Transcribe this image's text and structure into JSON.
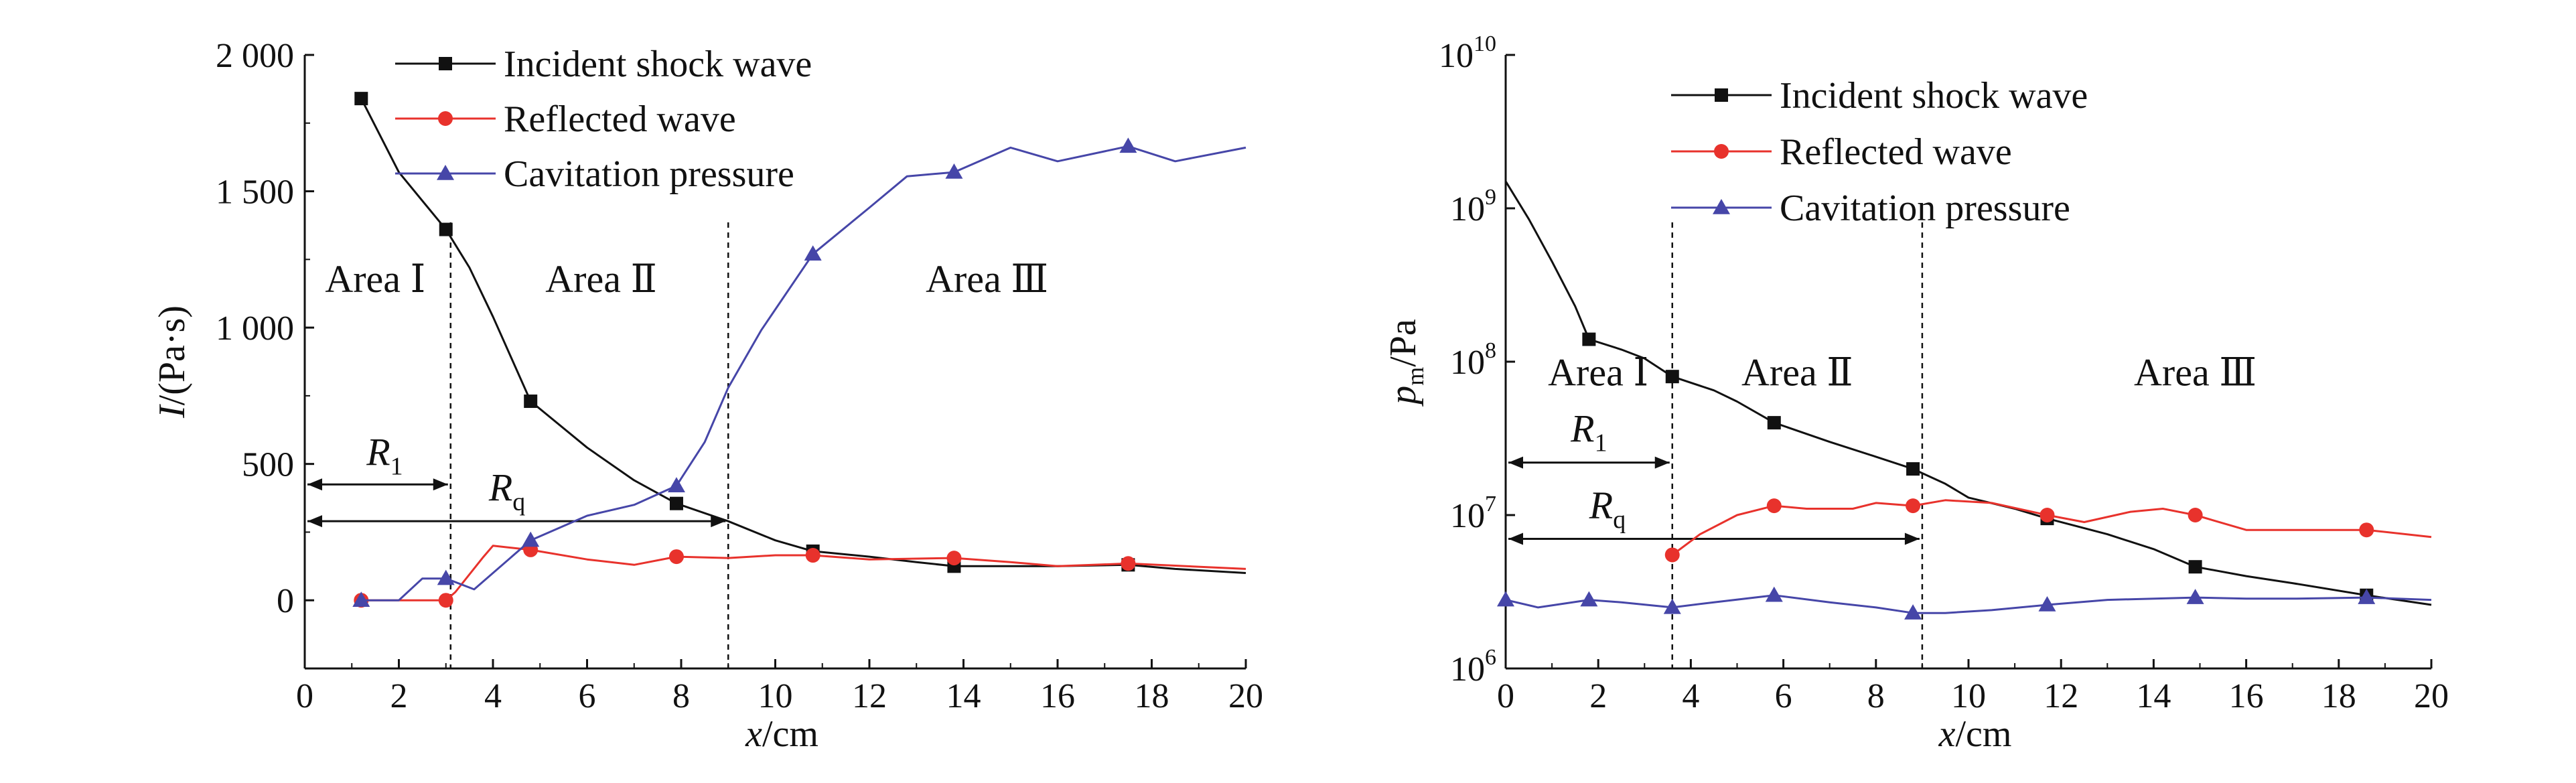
{
  "figure": {
    "background": "#ffffff"
  },
  "chart_data": [
    {
      "id": "impulse",
      "type": "line",
      "x_scale": "linear",
      "y_scale": "linear",
      "xlim": [
        0,
        20
      ],
      "ylim": [
        -250,
        2000
      ],
      "x_ticks": [
        0,
        2,
        4,
        6,
        8,
        10,
        12,
        14,
        16,
        18,
        20
      ],
      "x_tick_labels": [
        "0",
        "2",
        "4",
        "6",
        "8",
        "10",
        "12",
        "14",
        "16",
        "18",
        "20"
      ],
      "y_ticks": [
        0,
        500,
        1000,
        1500,
        2000
      ],
      "y_tick_labels": [
        "0",
        "500",
        "1 000",
        "1 500",
        "2 000"
      ],
      "xlabel": {
        "var": "x",
        "unit": "/cm"
      },
      "ylabel": {
        "var": "I",
        "unit": "/(Pa·s)"
      },
      "grid": false,
      "legend_position": "top-center",
      "series": [
        {
          "name": "Incident shock wave",
          "color": "#111111",
          "marker": "square",
          "x": [
            1.2,
            2.0,
            3.0,
            3.5,
            4.0,
            4.8,
            6.0,
            7.0,
            7.9,
            9.0,
            10.0,
            10.8,
            12.0,
            13.0,
            13.8,
            15.0,
            16.0,
            17.5,
            18.5,
            20.0
          ],
          "y": [
            1840,
            1570,
            1360,
            1220,
            1040,
            730,
            560,
            440,
            355,
            290,
            220,
            180,
            160,
            140,
            125,
            125,
            125,
            130,
            115,
            100
          ],
          "marker_x": [
            1.2,
            3.0,
            4.8,
            7.9,
            10.8,
            13.8,
            17.5
          ]
        },
        {
          "name": "Reflected wave",
          "color": "#e8322c",
          "marker": "circle",
          "x": [
            1.2,
            3.0,
            3.2,
            3.8,
            4.0,
            4.8,
            6.0,
            7.0,
            7.9,
            9.0,
            10.0,
            10.8,
            12.0,
            13.8,
            15.0,
            16.0,
            17.5,
            20.0
          ],
          "y": [
            0,
            0,
            30,
            160,
            200,
            185,
            150,
            130,
            160,
            155,
            165,
            165,
            150,
            155,
            140,
            125,
            135,
            115
          ],
          "marker_x": [
            1.2,
            3.0,
            4.8,
            7.9,
            10.8,
            13.8,
            17.5
          ]
        },
        {
          "name": "Cavitation pressure",
          "color": "#4646a8",
          "marker": "triangle",
          "x": [
            1.2,
            2.0,
            2.5,
            3.0,
            3.6,
            4.8,
            6.0,
            7.0,
            7.9,
            8.5,
            9.0,
            9.7,
            10.8,
            12.0,
            12.8,
            13.8,
            15.0,
            16.0,
            17.5,
            18.5,
            20.0
          ],
          "y": [
            0,
            0,
            80,
            80,
            40,
            220,
            310,
            350,
            420,
            580,
            780,
            990,
            1270,
            1440,
            1555,
            1570,
            1660,
            1610,
            1665,
            1610,
            1660
          ],
          "marker_x": [
            1.2,
            3.0,
            4.8,
            7.9,
            10.8,
            13.8,
            17.5
          ]
        }
      ],
      "region_boundaries": [
        3.1,
        9.0
      ],
      "region_labels": [
        {
          "text": "Area Ⅰ",
          "x": 1.5,
          "y": 1130
        },
        {
          "text": "Area Ⅱ",
          "x": 6.3,
          "y": 1130
        },
        {
          "text": "Area Ⅲ",
          "x": 14.5,
          "y": 1130
        }
      ],
      "annotations": [
        {
          "symbol": "R",
          "subscript": "1",
          "x_from": 0,
          "x_to": 3.1,
          "y": 425,
          "label_x": 1.7,
          "label_y": 495
        },
        {
          "symbol": "R",
          "subscript": "q",
          "x_from": 0,
          "x_to": 9.0,
          "y": 290,
          "label_x": 4.3,
          "label_y": 365
        }
      ]
    },
    {
      "id": "peak-pressure",
      "type": "line",
      "x_scale": "linear",
      "y_scale": "log",
      "xlim": [
        0,
        20
      ],
      "ylim": [
        1000000,
        10000000000
      ],
      "x_ticks": [
        0,
        2,
        4,
        6,
        8,
        10,
        12,
        14,
        16,
        18,
        20
      ],
      "x_tick_labels": [
        "0",
        "2",
        "4",
        "6",
        "8",
        "10",
        "12",
        "14",
        "16",
        "18",
        "20"
      ],
      "y_ticks": [
        1000000,
        10000000,
        100000000,
        1000000000,
        10000000000
      ],
      "y_tick_labels": [
        {
          "base": "10",
          "exp": "6"
        },
        {
          "base": "10",
          "exp": "7"
        },
        {
          "base": "10",
          "exp": "8"
        },
        {
          "base": "10",
          "exp": "9"
        },
        {
          "base": "10",
          "exp": "10"
        }
      ],
      "xlabel": {
        "var": "x",
        "unit": "/cm"
      },
      "ylabel": {
        "var": "p",
        "sub": "m",
        "unit": "/Pa"
      },
      "grid": false,
      "legend_position": "top-center",
      "series": [
        {
          "name": "Incident shock wave",
          "color": "#111111",
          "marker": "square",
          "x": [
            0.0,
            0.5,
            1.0,
            1.5,
            1.8,
            2.5,
            3.0,
            3.6,
            4.5,
            5.0,
            5.8,
            7.0,
            8.0,
            8.8,
            9.5,
            10.0,
            11.0,
            11.7,
            13.0,
            14.0,
            14.9,
            16.0,
            17.0,
            18.6,
            20.0
          ],
          "y": [
            1500000000,
            850000000,
            450000000,
            230000000,
            140000000,
            120000000,
            105000000,
            80000000,
            65000000,
            55000000,
            40000000,
            30000000,
            24000000,
            20000000,
            16000000,
            13000000,
            11000000,
            9500000,
            7500000,
            6000000,
            4600000,
            4000000,
            3600000,
            3000000,
            2600000
          ],
          "marker_x": [
            1.8,
            3.6,
            5.8,
            8.8,
            11.7,
            14.9,
            18.6
          ]
        },
        {
          "name": "Reflected wave",
          "color": "#e8322c",
          "marker": "circle",
          "x": [
            3.6,
            4.2,
            5.0,
            5.8,
            6.5,
            7.5,
            8.0,
            8.8,
            9.5,
            10.5,
            11.7,
            12.5,
            13.5,
            14.2,
            14.9,
            16.0,
            17.5,
            18.6,
            20.0
          ],
          "y": [
            5500000,
            7500000,
            10000000,
            11500000,
            11000000,
            11000000,
            12000000,
            11500000,
            12500000,
            12000000,
            10000000,
            9000000,
            10500000,
            11000000,
            10000000,
            8000000,
            8000000,
            8000000,
            7200000
          ],
          "marker_x": [
            3.6,
            5.8,
            8.8,
            11.7,
            14.9,
            18.6
          ]
        },
        {
          "name": "Cavitation pressure",
          "color": "#4646a8",
          "marker": "triangle",
          "x": [
            0.0,
            0.7,
            1.8,
            2.5,
            3.6,
            4.5,
            5.8,
            7.0,
            8.0,
            8.8,
            9.5,
            10.5,
            11.7,
            13.0,
            14.9,
            16.0,
            17.0,
            18.6,
            20.0
          ],
          "y": [
            2800000,
            2500000,
            2800000,
            2700000,
            2500000,
            2700000,
            3000000,
            2700000,
            2500000,
            2300000,
            2300000,
            2400000,
            2600000,
            2800000,
            2900000,
            2850000,
            2850000,
            2900000,
            2800000
          ],
          "marker_x": [
            0.0,
            1.8,
            3.6,
            5.8,
            8.8,
            11.7,
            14.9,
            18.6
          ]
        }
      ],
      "region_boundaries": [
        3.6,
        9.0
      ],
      "region_labels": [
        {
          "text": "Area Ⅰ",
          "x": 2.0,
          "y": 70000000
        },
        {
          "text": "Area Ⅱ",
          "x": 6.3,
          "y": 70000000
        },
        {
          "text": "Area Ⅲ",
          "x": 14.9,
          "y": 70000000
        }
      ],
      "annotations": [
        {
          "symbol": "R",
          "subscript": "1",
          "x_from": 0,
          "x_to": 3.6,
          "y": 22000000,
          "label_x": 1.8,
          "label_y": 30000000
        },
        {
          "symbol": "R",
          "subscript": "q",
          "x_from": 0,
          "x_to": 9.0,
          "y": 7000000,
          "label_x": 2.2,
          "label_y": 9500000
        }
      ]
    }
  ]
}
